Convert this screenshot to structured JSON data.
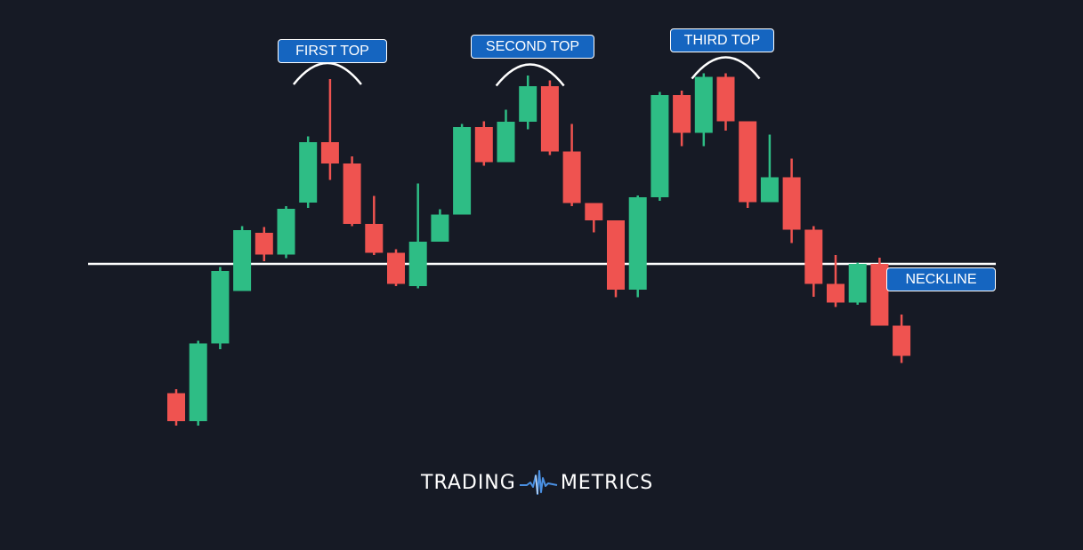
{
  "chart_data": {
    "type": "candlestick",
    "title": "",
    "xlabel": "",
    "ylabel": "",
    "ylim": [
      0,
      100
    ],
    "grid": false,
    "colors": {
      "up": "#2ebd85",
      "down": "#ef5350",
      "background": "#161a25",
      "neckline": "#ffffff"
    },
    "candles": [
      {
        "o": 17.5,
        "h": 18.4,
        "l": 10.2,
        "c": 11.2
      },
      {
        "o": 11.2,
        "h": 29.3,
        "l": 10.2,
        "c": 28.7
      },
      {
        "o": 28.7,
        "h": 45.9,
        "l": 27.4,
        "c": 45.0
      },
      {
        "o": 40.5,
        "h": 55.1,
        "l": 40.5,
        "c": 54.2
      },
      {
        "o": 53.6,
        "h": 54.9,
        "l": 47.2,
        "c": 48.7
      },
      {
        "o": 48.7,
        "h": 59.6,
        "l": 47.9,
        "c": 59.0
      },
      {
        "o": 60.4,
        "h": 75.3,
        "l": 59.2,
        "c": 74.0
      },
      {
        "o": 74.0,
        "h": 88.2,
        "l": 65.5,
        "c": 69.2
      },
      {
        "o": 69.2,
        "h": 70.8,
        "l": 55.1,
        "c": 55.6
      },
      {
        "o": 55.6,
        "h": 61.9,
        "l": 48.6,
        "c": 49.1
      },
      {
        "o": 49.1,
        "h": 49.9,
        "l": 41.6,
        "c": 42.1
      },
      {
        "o": 41.6,
        "h": 64.7,
        "l": 41.1,
        "c": 51.6
      },
      {
        "o": 51.6,
        "h": 58.9,
        "l": 51.6,
        "c": 57.7
      },
      {
        "o": 57.7,
        "h": 78.1,
        "l": 57.7,
        "c": 77.4
      },
      {
        "o": 77.4,
        "h": 78.7,
        "l": 68.7,
        "c": 69.5
      },
      {
        "o": 69.5,
        "h": 81.3,
        "l": 69.5,
        "c": 78.6
      },
      {
        "o": 78.6,
        "h": 89.0,
        "l": 76.9,
        "c": 86.6
      },
      {
        "o": 86.6,
        "h": 87.9,
        "l": 71.1,
        "c": 71.9
      },
      {
        "o": 71.9,
        "h": 78.1,
        "l": 59.6,
        "c": 60.3
      },
      {
        "o": 60.3,
        "h": 60.3,
        "l": 53.7,
        "c": 56.4
      },
      {
        "o": 56.4,
        "h": 56.4,
        "l": 39.1,
        "c": 40.8
      },
      {
        "o": 40.8,
        "h": 62.0,
        "l": 39.1,
        "c": 61.6
      },
      {
        "o": 61.6,
        "h": 85.3,
        "l": 60.8,
        "c": 84.6
      },
      {
        "o": 84.6,
        "h": 85.6,
        "l": 73.1,
        "c": 76.1
      },
      {
        "o": 76.1,
        "h": 89.5,
        "l": 73.1,
        "c": 88.7
      },
      {
        "o": 88.7,
        "h": 89.5,
        "l": 76.6,
        "c": 78.7
      },
      {
        "o": 78.7,
        "h": 78.7,
        "l": 59.2,
        "c": 60.5
      },
      {
        "o": 60.5,
        "h": 75.7,
        "l": 60.5,
        "c": 66.1
      },
      {
        "o": 66.1,
        "h": 70.3,
        "l": 51.3,
        "c": 54.3
      },
      {
        "o": 54.3,
        "h": 55.1,
        "l": 39.2,
        "c": 42.1
      },
      {
        "o": 42.1,
        "h": 48.6,
        "l": 36.9,
        "c": 37.9
      },
      {
        "o": 37.9,
        "h": 46.9,
        "l": 37.4,
        "c": 46.6
      },
      {
        "o": 46.6,
        "h": 48.0,
        "l": 32.7,
        "c": 32.7
      },
      {
        "o": 32.7,
        "h": 35.2,
        "l": 24.3,
        "c": 25.9
      }
    ],
    "neckline": {
      "value": 46.6
    },
    "annotations": [
      {
        "label": "FIRST TOP",
        "candle_index": 7
      },
      {
        "label": "SECOND TOP",
        "candle_index": 17
      },
      {
        "label": "THIRD TOP",
        "candle_index": 25
      },
      {
        "label": "NECKLINE",
        "candle_index": 33
      }
    ]
  },
  "brand": {
    "left_text": "TRADING",
    "right_text": "METRICS",
    "logo_icon": "waveform-icon"
  }
}
